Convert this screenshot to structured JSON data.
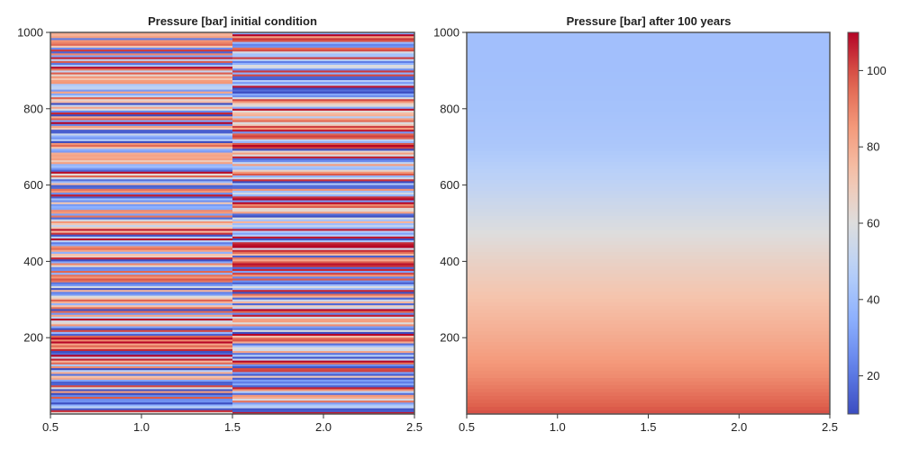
{
  "chart_data": [
    {
      "type": "heatmap",
      "title": "Pressure [bar] initial condition",
      "xlabel": "",
      "ylabel": "",
      "xlim": [
        0.5,
        2.5
      ],
      "ylim": [
        0,
        1000
      ],
      "x_ticks": [
        "0.5",
        "1.0",
        "1.5",
        "2.0",
        "2.5"
      ],
      "y_ticks": [
        "200",
        "400",
        "600",
        "800",
        "1000"
      ],
      "columns": [
        {
          "x_range": [
            0.5,
            1.5
          ],
          "description_values": "alternating thin layers, values span full color range 10-110"
        },
        {
          "x_range": [
            1.5,
            2.5
          ],
          "description_values": "alternating thin layers, values span full color range 10-110"
        }
      ],
      "layer_count": 200,
      "colormap": "coolwarm",
      "clim": [
        10,
        110
      ]
    },
    {
      "type": "heatmap",
      "title": "Pressure [bar] after 100 years",
      "xlabel": "",
      "ylabel": "",
      "xlim": [
        0.5,
        2.5
      ],
      "ylim": [
        0,
        1000
      ],
      "x_ticks": [
        "0.5",
        "1.0",
        "1.5",
        "2.0",
        "2.5"
      ],
      "y_ticks": [
        "200",
        "400",
        "600",
        "800",
        "1000"
      ],
      "profile": [
        {
          "depth": 0,
          "value": 100
        },
        {
          "depth": 100,
          "value": 88
        },
        {
          "depth": 200,
          "value": 80
        },
        {
          "depth": 300,
          "value": 73
        },
        {
          "depth": 400,
          "value": 66
        },
        {
          "depth": 500,
          "value": 58
        },
        {
          "depth": 600,
          "value": 50
        },
        {
          "depth": 700,
          "value": 44
        },
        {
          "depth": 800,
          "value": 42
        },
        {
          "depth": 900,
          "value": 41
        },
        {
          "depth": 1000,
          "value": 41
        }
      ],
      "colormap": "coolwarm",
      "clim": [
        10,
        110
      ]
    }
  ],
  "colorbar": {
    "ticks": [
      "20",
      "40",
      "60",
      "80",
      "100"
    ],
    "tick_values": [
      20,
      40,
      60,
      80,
      100
    ],
    "range": [
      10,
      110
    ]
  },
  "colors": {
    "low": "#3b4cc0",
    "mid": "#dddddd",
    "high": "#b40426"
  }
}
